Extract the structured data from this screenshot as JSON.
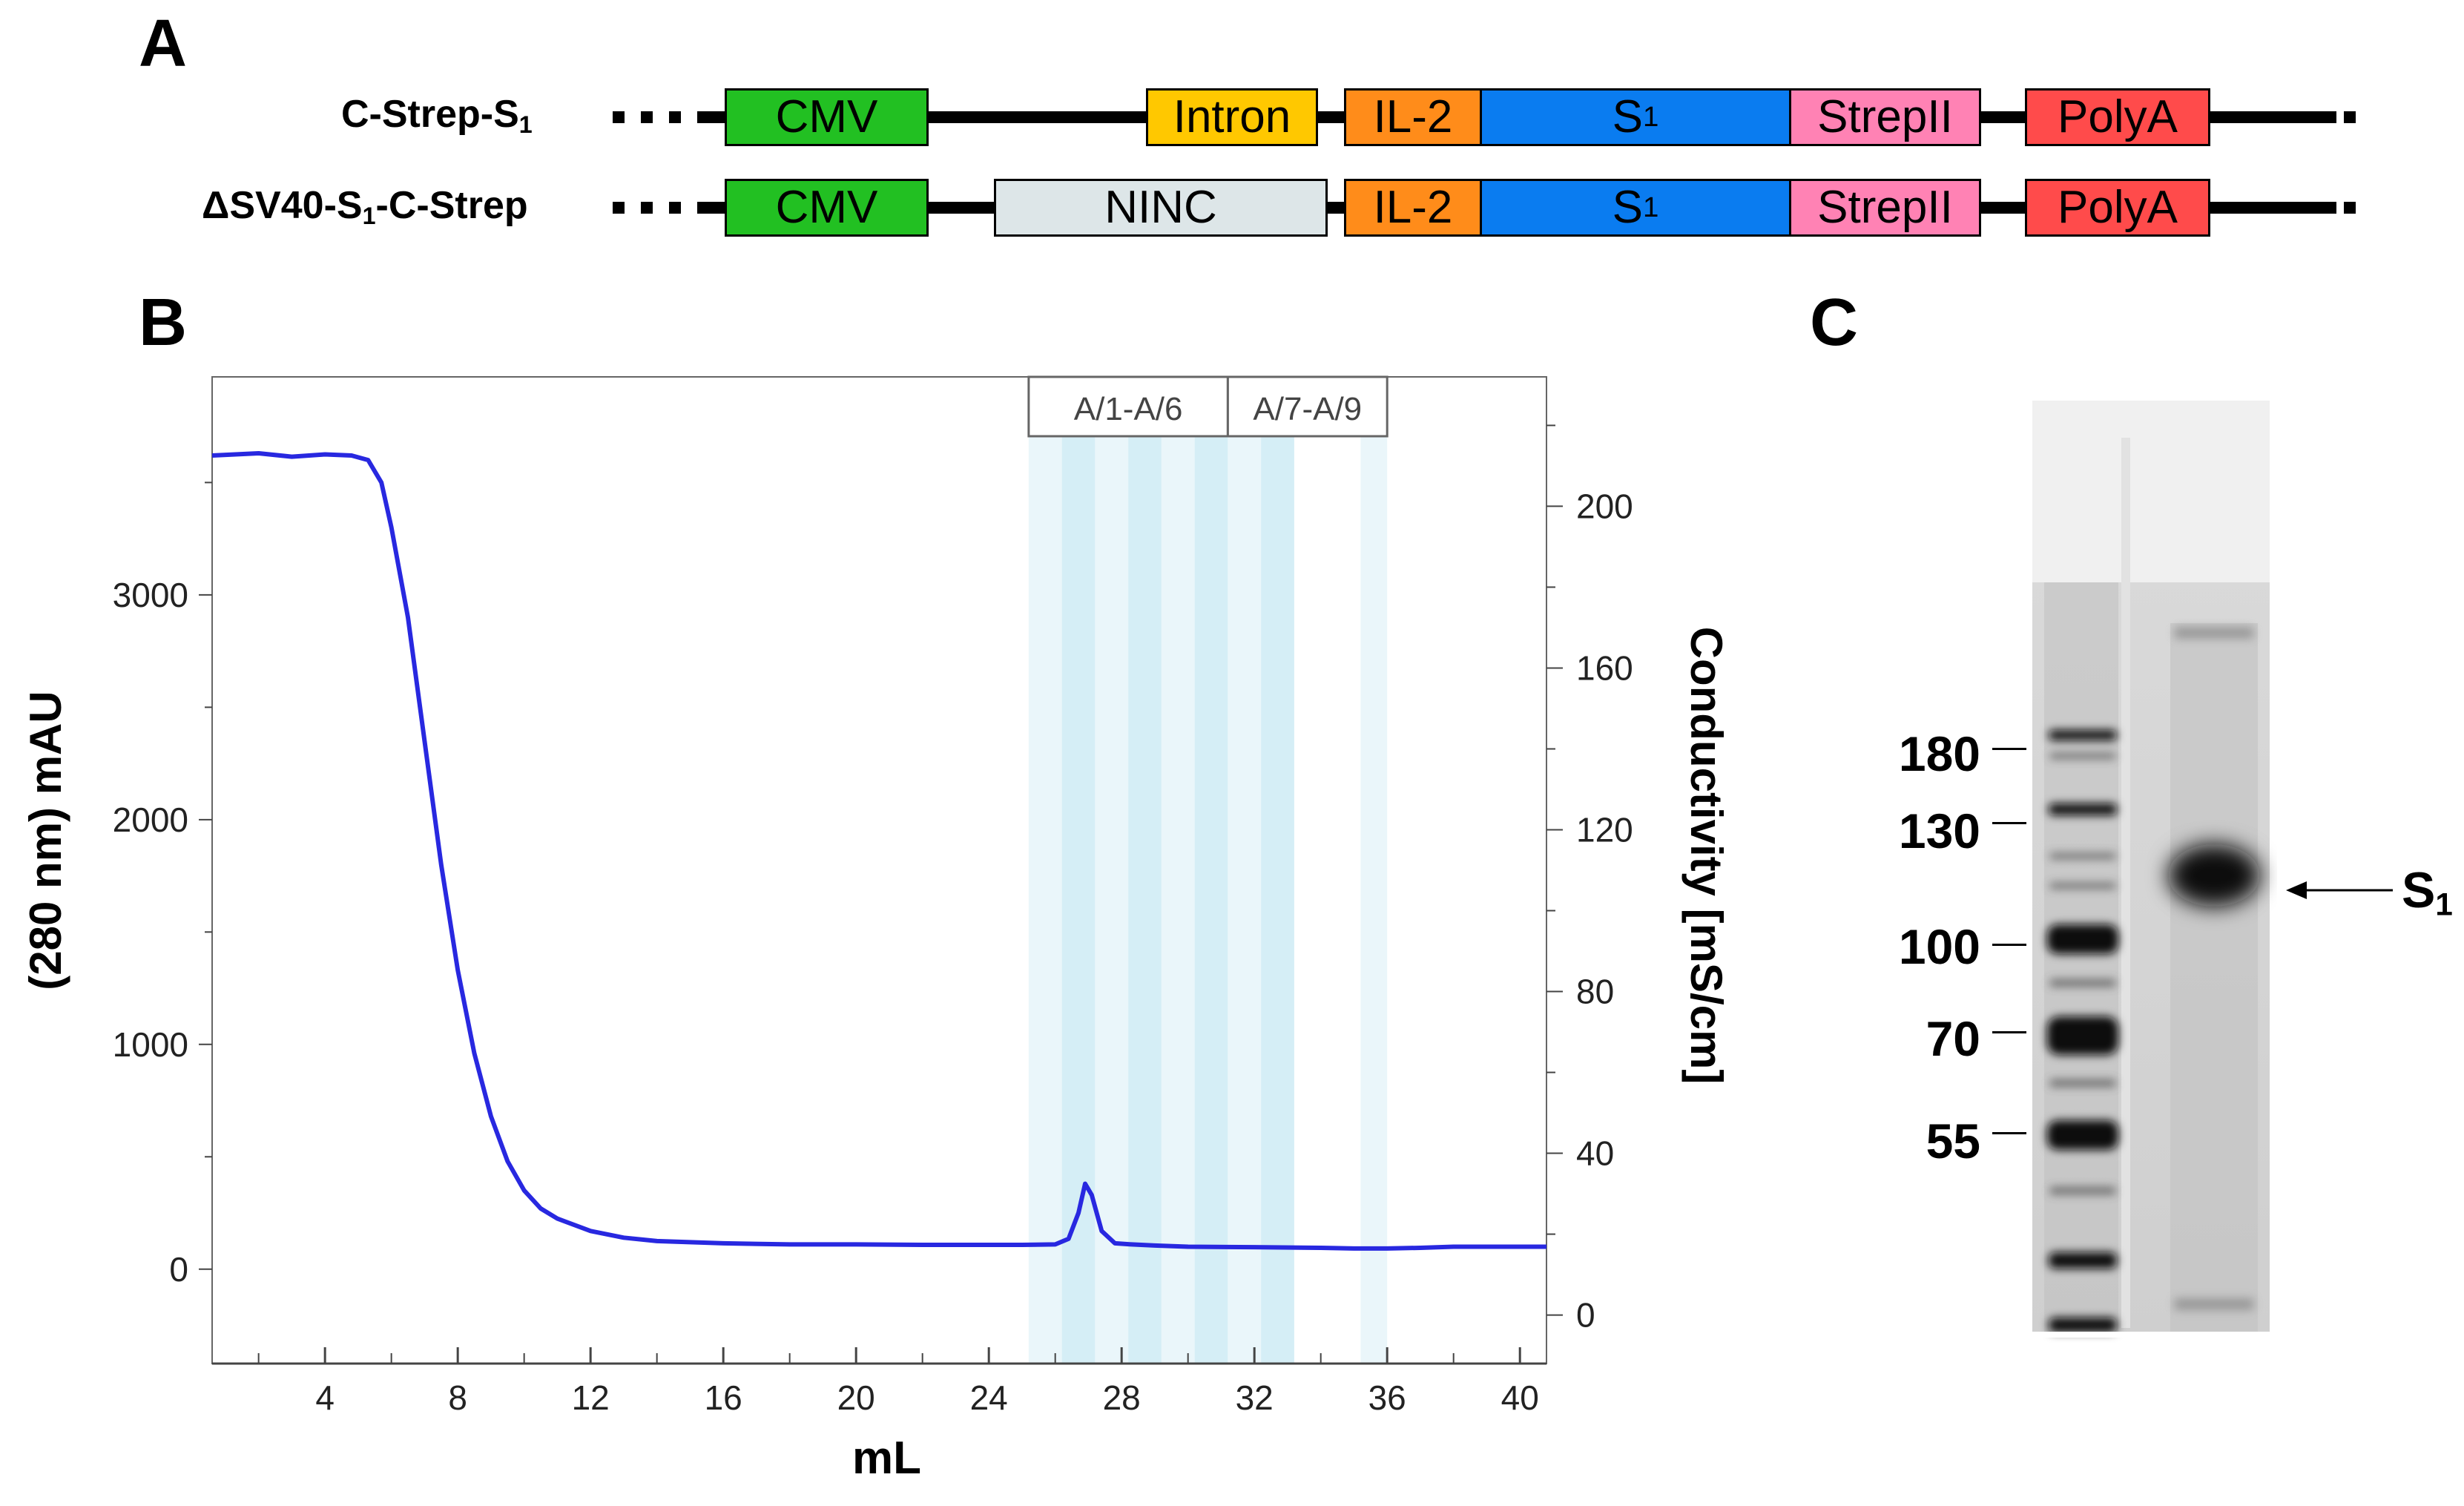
{
  "panels": {
    "a": "A",
    "b": "B",
    "c": "C"
  },
  "constructs": [
    {
      "name": "C-Strep-S",
      "name_sub": "1",
      "elements": [
        {
          "label": "CMV",
          "color": "#22c022"
        },
        {
          "label": "Intron",
          "color": "#ffc800"
        },
        {
          "label": "IL-2",
          "color": "#ff8c1a"
        },
        {
          "label": "S",
          "sub": "1",
          "color": "#0a7cf0"
        },
        {
          "label": "StrepII",
          "color": "#ff82b4"
        },
        {
          "label": "PolyA",
          "color": "#ff4b4b"
        }
      ]
    },
    {
      "name_prefix": "ΔSV40-S",
      "name_sub": "1",
      "name_suffix": "-C-Strep",
      "elements": [
        {
          "label": "CMV",
          "color": "#22c022"
        },
        {
          "label": "NINC",
          "color": "#dde6e8"
        },
        {
          "label": "IL-2",
          "color": "#ff8c1a"
        },
        {
          "label": "S",
          "sub": "1",
          "color": "#0a7cf0"
        },
        {
          "label": "StrepII",
          "color": "#ff82b4"
        },
        {
          "label": "PolyA",
          "color": "#ff4b4b"
        }
      ]
    }
  ],
  "chart_data": {
    "type": "line",
    "xlabel": "mL",
    "ylabel": "(280 nm) mAU",
    "y2label": "Conductivity [mS/cm]",
    "xlim": [
      0.6,
      40.8
    ],
    "ylim": [
      -420,
      3970
    ],
    "y2lim": [
      -12,
      232
    ],
    "x_ticks": [
      4,
      8,
      12,
      16,
      20,
      24,
      28,
      32,
      36,
      40
    ],
    "y_ticks": [
      0,
      1000,
      2000,
      3000
    ],
    "y2_ticks": [
      0,
      40,
      80,
      120,
      160,
      200
    ],
    "series": [
      {
        "color": "#2828e0",
        "x": [
          0.6,
          2,
          3,
          4,
          4.8,
          5.3,
          5.7,
          6.0,
          6.5,
          7.0,
          7.5,
          8.0,
          8.5,
          9.0,
          9.5,
          10,
          10.5,
          11,
          12,
          13,
          14,
          16,
          18,
          20,
          22,
          24,
          25,
          26.0,
          26.4,
          26.7,
          26.9,
          27.1,
          27.4,
          27.8,
          28.3,
          29,
          30,
          32,
          34,
          35,
          36,
          37,
          38,
          40,
          40.8
        ],
        "y": [
          3620,
          3630,
          3615,
          3625,
          3620,
          3600,
          3500,
          3300,
          2900,
          2350,
          1800,
          1330,
          960,
          680,
          480,
          350,
          270,
          225,
          170,
          140,
          125,
          115,
          110,
          110,
          108,
          108,
          108,
          110,
          135,
          250,
          380,
          330,
          170,
          115,
          110,
          105,
          100,
          98,
          95,
          92,
          92,
          95,
          100,
          100,
          100
        ]
      }
    ],
    "fractions": [
      {
        "label": "A/1-A/6",
        "x_start": 25.2,
        "x_end": 31.2
      },
      {
        "label": "A/7-A/9",
        "x_start": 31.2,
        "x_end": 36.0
      }
    ]
  },
  "gel": {
    "markers": [
      "180",
      "130",
      "100",
      "70",
      "55"
    ],
    "band_label": "S",
    "band_label_sub": "1"
  }
}
